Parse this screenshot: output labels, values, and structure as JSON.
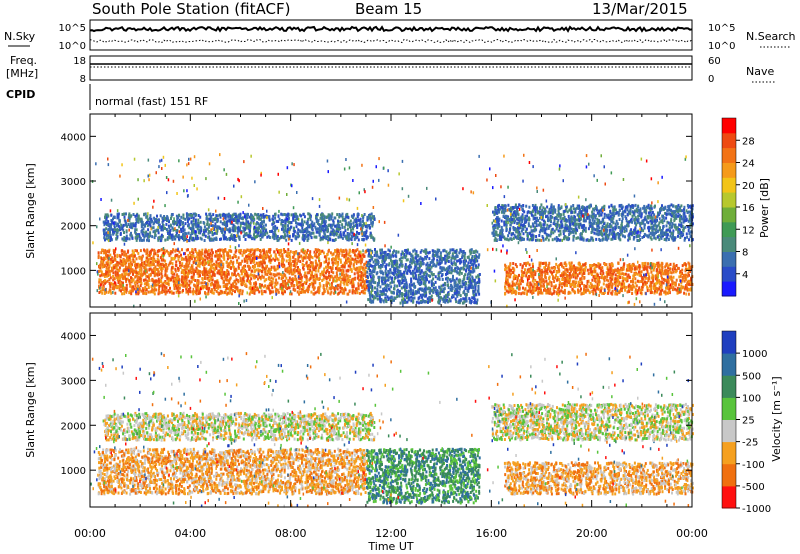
{
  "header": {
    "station": "South Pole Station (fitACF)",
    "beam": "Beam 15",
    "date": "13/Mar/2015"
  },
  "panels": {
    "nsky": {
      "label": "N.Sky",
      "right_label": "N.Search",
      "ticks_left": [
        "10^5",
        "10^0"
      ],
      "ticks_right": [
        "10^5",
        "10^0"
      ]
    },
    "freq": {
      "label_line1": "Freq.",
      "label_line2": "[MHz]",
      "right_label": "Nave",
      "ticks_left": [
        "18",
        "8"
      ],
      "ticks_right": [
        "60",
        "0"
      ]
    },
    "cpid": {
      "label": "CPID",
      "text": "normal (fast) 151 RF"
    }
  },
  "chart_data": [
    {
      "type": "heatmap",
      "title": "",
      "quantity": "Power",
      "ylabel": "Slant Range [km]",
      "ylim": [
        180,
        4500
      ],
      "yticks": [
        1000,
        2000,
        3000,
        4000
      ],
      "xlabel": "",
      "xlim": [
        0,
        24
      ],
      "colorbar": {
        "label": "Power [dB]",
        "min": 0,
        "max": 32,
        "ticks": [
          "4",
          "8",
          "12",
          "16",
          "20",
          "24",
          "28"
        ],
        "colors": [
          "#1a1aff",
          "#2a4cc8",
          "#3b6fb0",
          "#4a8a7a",
          "#3f9a55",
          "#6fae3a",
          "#b7c82e",
          "#f2c418",
          "#f59a1a",
          "#f27316",
          "#ee4a12",
          "#ff0000"
        ]
      },
      "echo_regions": [
        {
          "t_start": 0.3,
          "t_end": 11.0,
          "range_min": 500,
          "range_max": 1500,
          "value": 26,
          "desc": "strong band"
        },
        {
          "t_start": 0.5,
          "t_end": 11.3,
          "range_min": 1700,
          "range_max": 2300,
          "value": 7,
          "desc": "weak band"
        },
        {
          "t_start": 11.0,
          "t_end": 15.5,
          "range_min": 300,
          "range_max": 1500,
          "value": 6,
          "desc": "patchy"
        },
        {
          "t_start": 16.5,
          "t_end": 24.0,
          "range_min": 500,
          "range_max": 1200,
          "value": 24,
          "desc": "strong band"
        },
        {
          "t_start": 16.0,
          "t_end": 24.0,
          "range_min": 1700,
          "range_max": 2500,
          "value": 6,
          "desc": "weak band"
        }
      ]
    },
    {
      "type": "heatmap",
      "title": "",
      "quantity": "Velocity",
      "ylabel": "Slant Range [km]",
      "ylim": [
        180,
        4500
      ],
      "yticks": [
        1000,
        2000,
        3000,
        4000
      ],
      "xlabel": "Time UT",
      "xlim": [
        0,
        24
      ],
      "xticks": [
        "00:00",
        "04:00",
        "08:00",
        "12:00",
        "16:00",
        "20:00",
        "00:00"
      ],
      "colorbar": {
        "label": "Velocity [m s⁻¹]",
        "ticks": [
          "1000",
          "500",
          "100",
          "25",
          "-25",
          "-100",
          "-500",
          "-1000"
        ],
        "colors": [
          "#1f3fbf",
          "#2f6fa0",
          "#3b8a5a",
          "#59c43c",
          "#c8c8c8",
          "#f5a020",
          "#f07010",
          "#ff1010"
        ]
      },
      "echo_regions": [
        {
          "t_start": 0.3,
          "t_end": 11.0,
          "range_min": 500,
          "range_max": 1500,
          "value": -150,
          "desc": "orange band"
        },
        {
          "t_start": 0.5,
          "t_end": 11.3,
          "range_min": 1700,
          "range_max": 2300,
          "value": 0,
          "desc": "grey band"
        },
        {
          "t_start": 11.0,
          "t_end": 15.5,
          "range_min": 300,
          "range_max": 1500,
          "value": 200,
          "desc": "green patchy"
        },
        {
          "t_start": 16.5,
          "t_end": 24.0,
          "range_min": 500,
          "range_max": 1200,
          "value": -150,
          "desc": "orange band"
        },
        {
          "t_start": 16.0,
          "t_end": 24.0,
          "range_min": 1700,
          "range_max": 2500,
          "value": 0,
          "desc": "grey band"
        }
      ]
    }
  ]
}
